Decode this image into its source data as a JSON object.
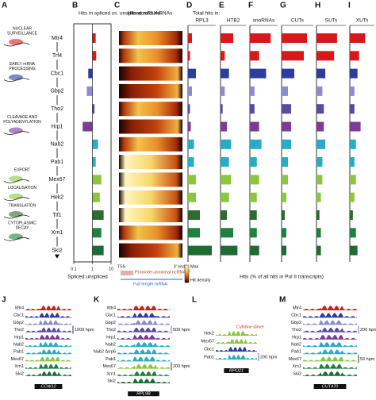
{
  "proteins": [
    "Mtr4",
    "Trf4",
    "Cbc1",
    "Gbp2",
    "Tho2",
    "Hrp1",
    "Nab2",
    "Pab1",
    "Mex67",
    "Hek2",
    "Tif1",
    "Xrn1",
    "Ski2"
  ],
  "colors": [
    "#d7191c",
    "#d7191c",
    "#2c3e99",
    "#8e8ccc",
    "#5b4ba0",
    "#7a3c96",
    "#29abc4",
    "#29abc4",
    "#8cc63e",
    "#8cc63e",
    "#2f6b2f",
    "#1f8040",
    "#1f6b35"
  ],
  "panel_a": {
    "letter": "A",
    "groups": [
      {
        "lines": [
          "NUCLEAR",
          "SURVEILLANCE"
        ],
        "row": 0
      },
      {
        "lines": [
          "EARLY mRNA",
          "PROCESSING"
        ],
        "row": 2
      },
      {
        "lines": [
          "CLEAVAGE AND",
          "POLYADENYLATION"
        ],
        "row": 5
      },
      {
        "lines": [
          "EXPORT"
        ],
        "row": 8
      },
      {
        "lines": [
          "LOCALISATION"
        ],
        "row": 9
      },
      {
        "lines": [
          "TRANSLATION"
        ],
        "row": 10
      },
      {
        "lines": [
          "CYTOPLASMIC",
          "DECAY"
        ],
        "row": 11
      }
    ]
  },
  "chart_data": [
    {
      "type": "bar",
      "panel": "B",
      "title": "Hits in spliced vs. unspliced mRNAs",
      "xlabel": "Spliced:unspliced",
      "values": [
        1.5,
        1.6,
        0.6,
        0.5,
        1.3,
        0.3,
        2.0,
        1.5,
        3.0,
        2.5,
        4.0,
        3.0,
        4.0
      ],
      "xlim": [
        0.1,
        10
      ],
      "xticks": [
        0.1,
        1,
        10
      ],
      "log_scale": true
    },
    {
      "type": "bar",
      "panel": "D",
      "supertitle": "Total hits in:",
      "title": "RPL3",
      "values": [
        1.0,
        0.5,
        2.0,
        1.0,
        0.5,
        0.7,
        1.5,
        1.5,
        2.0,
        2.0,
        3.0,
        3.0,
        6.0
      ],
      "xlim": [
        0,
        7
      ]
    },
    {
      "type": "bar",
      "panel": "E",
      "title": "HTB2",
      "values": [
        3.0,
        1.0,
        2.0,
        1.0,
        0.5,
        1.5,
        2.5,
        2.0,
        2.5,
        2.0,
        1.5,
        3.0,
        4.0
      ],
      "xlim": [
        0,
        6
      ]
    },
    {
      "type": "bar",
      "panel": "F",
      "title": "snoRNAs",
      "values": [
        4.5,
        2.0,
        3.5,
        1.0,
        1.0,
        2.0,
        2.5,
        1.5,
        2.0,
        1.5,
        1.5,
        1.5,
        2.0
      ],
      "xlim": [
        0,
        6
      ]
    },
    {
      "type": "bar",
      "panel": "G",
      "title": "CUTs",
      "values": [
        8.0,
        7.0,
        4.0,
        2.0,
        3.0,
        3.0,
        3.0,
        2.0,
        2.0,
        1.5,
        1.0,
        1.5,
        1.5
      ],
      "xlim": [
        0,
        10
      ]
    },
    {
      "type": "bar",
      "panel": "H",
      "title": "SUTs",
      "values": [
        7.0,
        6.0,
        3.0,
        2.0,
        2.5,
        2.5,
        3.0,
        2.0,
        2.0,
        1.5,
        1.0,
        1.5,
        1.5
      ],
      "xlim": [
        0,
        10
      ]
    },
    {
      "type": "bar",
      "panel": "I",
      "title": "XUTs",
      "values": [
        5.0,
        3.0,
        2.5,
        1.5,
        1.5,
        3.5,
        2.0,
        1.5,
        2.0,
        1.5,
        1.0,
        2.0,
        2.5
      ],
      "xlim": [
        0,
        8
      ]
    }
  ],
  "panel_c": {
    "letter": "C",
    "title": "Hits across mRNAs",
    "tss": "TSS",
    "end": "3' end",
    "promoter": "Promoter-proximal ncRNAs?",
    "full": "Full length mRNA",
    "max": "Max",
    "density": "Hit density"
  },
  "hits_label": "Hits (% of all hits in Pol II transcripts)",
  "tracks": [
    {
      "letter": "J",
      "labels": [
        "Mtr4",
        "Cbc1",
        "Gbp2",
        "Tho2",
        "Hrp1",
        "Nab2",
        "Pab1",
        "Mex67",
        "Xrn1",
        "Ski2"
      ],
      "scales": [
        "1000 hpm"
      ],
      "gene": "CCW12"
    },
    {
      "letter": "K",
      "labels": [
        "Mtr4",
        "Cbc1",
        "Gbp2",
        "Tho2",
        "Hrp1",
        "Nab2",
        "Nab2 Δrrp6",
        "Pab1",
        "Mex67",
        "Xrn1",
        "Ski2"
      ],
      "scales": [
        "500 hpm",
        "200 hpm"
      ],
      "gene": "RPL9B"
    },
    {
      "letter": "L",
      "labels": [
        "Hek2",
        "Mex67",
        "Cbc1",
        "Pab1"
      ],
      "scales": [
        "200 hpm"
      ],
      "gene": "RPO21",
      "note": "Cytidine dimer"
    },
    {
      "letter": "M",
      "labels": [
        "Mtr4",
        "Cbc1",
        "Gbp2",
        "Tho2",
        "Hrp1",
        "Nab2",
        "Pab1",
        "Mex67",
        "Xrn1",
        "Ski2"
      ],
      "scales": [
        "200 hpm",
        "50 hpm"
      ],
      "gene": "CUT470"
    }
  ]
}
